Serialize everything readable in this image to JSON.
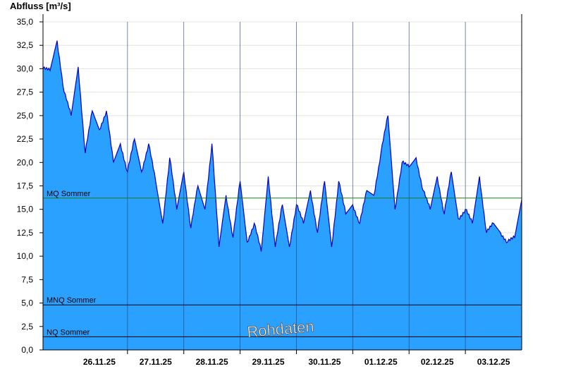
{
  "chart_data": {
    "type": "area",
    "ylabel": "Abfluss [m³/s]",
    "ylim": [
      0,
      35
    ],
    "ytick_labels": [
      "0,0",
      "2,5",
      "5,0",
      "7,5",
      "10,0",
      "12,5",
      "15,0",
      "17,5",
      "20,0",
      "22,5",
      "25,0",
      "27,5",
      "30,0",
      "32,5",
      "35,0"
    ],
    "x_start": "25.11.25 12:00",
    "x_end": "04.12.25 00:00",
    "xtick_labels": [
      "26.11.25",
      "27.11.25",
      "28.11.25",
      "29.11.25",
      "30.11.25",
      "01.12.25",
      "02.12.25",
      "03.12.25"
    ],
    "grid": true,
    "fill_color": "#2aa0ff",
    "line_color": "#0000c8",
    "reference_lines": [
      {
        "label": "MQ Sommer",
        "value": 16.2,
        "color": "#1a7a1a"
      },
      {
        "label": "MNQ Sommer",
        "value": 4.8,
        "color": "#000000"
      },
      {
        "label": "NQ Sommer",
        "value": 1.4,
        "color": "#000000"
      }
    ],
    "watermark": "Rohdaten",
    "series": [
      {
        "x": [
          "25.11.25 12:00",
          "25.11.25 15:00",
          "25.11.25 18:00",
          "25.11.25 21:00",
          "26.11.25 00:00",
          "26.11.25 03:00",
          "26.11.25 06:00",
          "26.11.25 09:00",
          "26.11.25 12:00",
          "26.11.25 15:00",
          "26.11.25 18:00",
          "26.11.25 21:00",
          "27.11.25 00:00",
          "27.11.25 03:00",
          "27.11.25 06:00",
          "27.11.25 09:00",
          "27.11.25 12:00",
          "27.11.25 15:00",
          "27.11.25 18:00",
          "27.11.25 21:00",
          "28.11.25 00:00",
          "28.11.25 03:00",
          "28.11.25 06:00",
          "28.11.25 09:00",
          "28.11.25 12:00",
          "28.11.25 15:00",
          "28.11.25 18:00",
          "28.11.25 21:00",
          "29.11.25 00:00",
          "29.11.25 03:00",
          "29.11.25 06:00",
          "29.11.25 09:00",
          "29.11.25 12:00",
          "29.11.25 15:00",
          "29.11.25 18:00",
          "29.11.25 21:00",
          "30.11.25 00:00",
          "30.11.25 03:00",
          "30.11.25 06:00",
          "30.11.25 09:00",
          "30.11.25 12:00",
          "30.11.25 15:00",
          "30.11.25 18:00",
          "30.11.25 21:00",
          "01.12.25 00:00",
          "01.12.25 03:00",
          "01.12.25 06:00",
          "01.12.25 09:00",
          "01.12.25 12:00",
          "01.12.25 15:00",
          "01.12.25 18:00",
          "01.12.25 21:00",
          "02.12.25 00:00",
          "02.12.25 03:00",
          "02.12.25 06:00",
          "02.12.25 09:00",
          "02.12.25 12:00",
          "02.12.25 15:00",
          "02.12.25 18:00",
          "02.12.25 21:00",
          "03.12.25 00:00",
          "03.12.25 03:00",
          "03.12.25 06:00",
          "03.12.25 09:00",
          "03.12.25 12:00",
          "03.12.25 15:00",
          "03.12.25 18:00",
          "03.12.25 21:00",
          "04.12.25 00:00"
        ],
        "values": [
          30.0,
          29.8,
          33.0,
          27.5,
          25.0,
          30.2,
          21.0,
          25.5,
          23.5,
          25.5,
          20.0,
          22.0,
          19.0,
          22.5,
          19.0,
          22.0,
          18.0,
          13.5,
          20.5,
          15.0,
          19.0,
          13.0,
          17.5,
          15.0,
          22.0,
          11.0,
          16.5,
          12.0,
          18.0,
          11.5,
          13.5,
          10.5,
          18.5,
          11.0,
          15.5,
          11.0,
          15.5,
          13.5,
          17.0,
          12.5,
          18.0,
          11.0,
          18.0,
          14.5,
          15.5,
          13.5,
          17.0,
          16.5,
          21.0,
          25.0,
          15.0,
          20.0,
          19.5,
          20.5,
          17.0,
          15.0,
          18.5,
          14.5,
          19.0,
          14.0,
          15.0,
          13.5,
          18.5,
          12.5,
          13.5,
          12.5,
          11.5,
          12.0,
          16.0
        ]
      }
    ]
  }
}
